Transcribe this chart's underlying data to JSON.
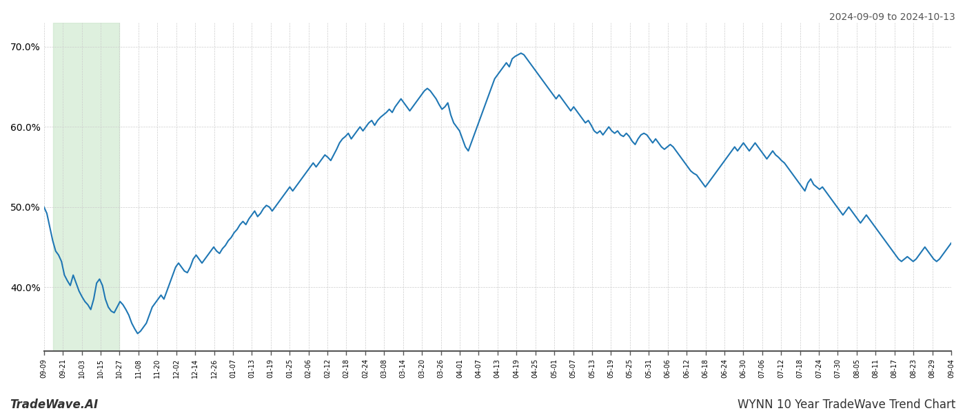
{
  "title_top_right": "2024-09-09 to 2024-10-13",
  "title_bottom_left": "TradeWave.AI",
  "title_bottom_right": "WYNN 10 Year TradeWave Trend Chart",
  "line_color": "#1f77b4",
  "line_width": 1.5,
  "shade_color": "#c8e6c9",
  "shade_alpha": 0.6,
  "background_color": "#ffffff",
  "grid_color": "#cccccc",
  "ylim": [
    32,
    73
  ],
  "yticks": [
    40.0,
    50.0,
    60.0,
    70.0
  ],
  "x_labels": [
    "09-09",
    "09-21",
    "10-03",
    "10-15",
    "10-27",
    "11-08",
    "11-20",
    "12-02",
    "12-14",
    "12-26",
    "01-07",
    "01-13",
    "01-19",
    "01-25",
    "02-06",
    "02-12",
    "02-18",
    "02-24",
    "03-08",
    "03-14",
    "03-20",
    "03-26",
    "04-01",
    "04-07",
    "04-13",
    "04-19",
    "04-25",
    "05-01",
    "05-07",
    "05-13",
    "05-19",
    "05-25",
    "05-31",
    "06-06",
    "06-12",
    "06-18",
    "06-24",
    "06-30",
    "07-06",
    "07-12",
    "07-18",
    "07-24",
    "07-30",
    "08-05",
    "08-11",
    "08-17",
    "08-23",
    "08-29",
    "09-04"
  ],
  "shade_label_start": "09-15",
  "shade_label_end": "10-27",
  "y_values": [
    50.0,
    49.2,
    47.5,
    45.8,
    44.5,
    44.0,
    43.2,
    41.5,
    40.8,
    40.2,
    41.5,
    40.5,
    39.5,
    38.8,
    38.2,
    37.8,
    37.2,
    38.5,
    40.5,
    41.0,
    40.2,
    38.5,
    37.5,
    37.0,
    36.8,
    37.5,
    38.2,
    37.8,
    37.2,
    36.5,
    35.5,
    34.8,
    34.2,
    34.5,
    35.0,
    35.5,
    36.5,
    37.5,
    38.0,
    38.5,
    39.0,
    38.5,
    39.5,
    40.5,
    41.5,
    42.5,
    43.0,
    42.5,
    42.0,
    41.8,
    42.5,
    43.5,
    44.0,
    43.5,
    43.0,
    43.5,
    44.0,
    44.5,
    45.0,
    44.5,
    44.2,
    44.8,
    45.2,
    45.8,
    46.2,
    46.8,
    47.2,
    47.8,
    48.2,
    47.8,
    48.5,
    49.0,
    49.5,
    48.8,
    49.2,
    49.8,
    50.2,
    50.0,
    49.5,
    50.0,
    50.5,
    51.0,
    51.5,
    52.0,
    52.5,
    52.0,
    52.5,
    53.0,
    53.5,
    54.0,
    54.5,
    55.0,
    55.5,
    55.0,
    55.5,
    56.0,
    56.5,
    56.2,
    55.8,
    56.5,
    57.2,
    58.0,
    58.5,
    58.8,
    59.2,
    58.5,
    59.0,
    59.5,
    60.0,
    59.5,
    60.0,
    60.5,
    60.8,
    60.2,
    60.8,
    61.2,
    61.5,
    61.8,
    62.2,
    61.8,
    62.5,
    63.0,
    63.5,
    63.0,
    62.5,
    62.0,
    62.5,
    63.0,
    63.5,
    64.0,
    64.5,
    64.8,
    64.5,
    64.0,
    63.5,
    62.8,
    62.2,
    62.5,
    63.0,
    61.5,
    60.5,
    60.0,
    59.5,
    58.5,
    57.5,
    57.0,
    58.0,
    59.0,
    60.0,
    61.0,
    62.0,
    63.0,
    64.0,
    65.0,
    66.0,
    66.5,
    67.0,
    67.5,
    68.0,
    67.5,
    68.5,
    68.8,
    69.0,
    69.2,
    69.0,
    68.5,
    68.0,
    67.5,
    67.0,
    66.5,
    66.0,
    65.5,
    65.0,
    64.5,
    64.0,
    63.5,
    64.0,
    63.5,
    63.0,
    62.5,
    62.0,
    62.5,
    62.0,
    61.5,
    61.0,
    60.5,
    60.8,
    60.2,
    59.5,
    59.2,
    59.5,
    59.0,
    59.5,
    60.0,
    59.5,
    59.2,
    59.5,
    59.0,
    58.8,
    59.2,
    58.8,
    58.2,
    57.8,
    58.5,
    59.0,
    59.2,
    59.0,
    58.5,
    58.0,
    58.5,
    58.0,
    57.5,
    57.2,
    57.5,
    57.8,
    57.5,
    57.0,
    56.5,
    56.0,
    55.5,
    55.0,
    54.5,
    54.2,
    54.0,
    53.5,
    53.0,
    52.5,
    53.0,
    53.5,
    54.0,
    54.5,
    55.0,
    55.5,
    56.0,
    56.5,
    57.0,
    57.5,
    57.0,
    57.5,
    58.0,
    57.5,
    57.0,
    57.5,
    58.0,
    57.5,
    57.0,
    56.5,
    56.0,
    56.5,
    57.0,
    56.5,
    56.2,
    55.8,
    55.5,
    55.0,
    54.5,
    54.0,
    53.5,
    53.0,
    52.5,
    52.0,
    53.0,
    53.5,
    52.8,
    52.5,
    52.2,
    52.5,
    52.0,
    51.5,
    51.0,
    50.5,
    50.0,
    49.5,
    49.0,
    49.5,
    50.0,
    49.5,
    49.0,
    48.5,
    48.0,
    48.5,
    49.0,
    48.5,
    48.0,
    47.5,
    47.0,
    46.5,
    46.0,
    45.5,
    45.0,
    44.5,
    44.0,
    43.5,
    43.2,
    43.5,
    43.8,
    43.5,
    43.2,
    43.5,
    44.0,
    44.5,
    45.0,
    44.5,
    44.0,
    43.5,
    43.2,
    43.5,
    44.0,
    44.5,
    45.0,
    45.5
  ]
}
